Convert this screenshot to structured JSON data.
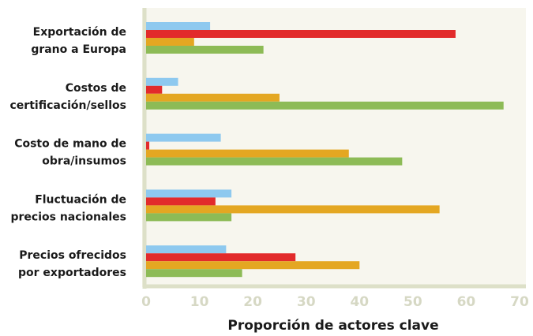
{
  "chart_data": {
    "type": "barh",
    "categories": [
      [
        "Exportación de",
        "grano a Europa"
      ],
      [
        "Costos de",
        "certificación/sellos"
      ],
      [
        "Costo de mano de",
        "obra/insumos"
      ],
      [
        "Fluctuación de",
        "precios nacionales"
      ],
      [
        "Precios ofrecidos",
        "por exportadores"
      ]
    ],
    "series": [
      {
        "color": "#8ec9ef",
        "values": [
          12,
          6,
          14,
          16,
          15
        ]
      },
      {
        "color": "#e22b2b",
        "values": [
          58,
          3,
          0.6,
          13,
          28
        ]
      },
      {
        "color": "#e4a722",
        "values": [
          9,
          25,
          38,
          55,
          40
        ]
      },
      {
        "color": "#8dbb56",
        "values": [
          22,
          67,
          48,
          16,
          18
        ]
      }
    ],
    "xlim": [
      0,
      70
    ],
    "xticks": [
      0,
      10,
      20,
      30,
      40,
      50,
      60,
      70
    ],
    "xlabel": "Proporción de actores clave",
    "grid": false
  }
}
